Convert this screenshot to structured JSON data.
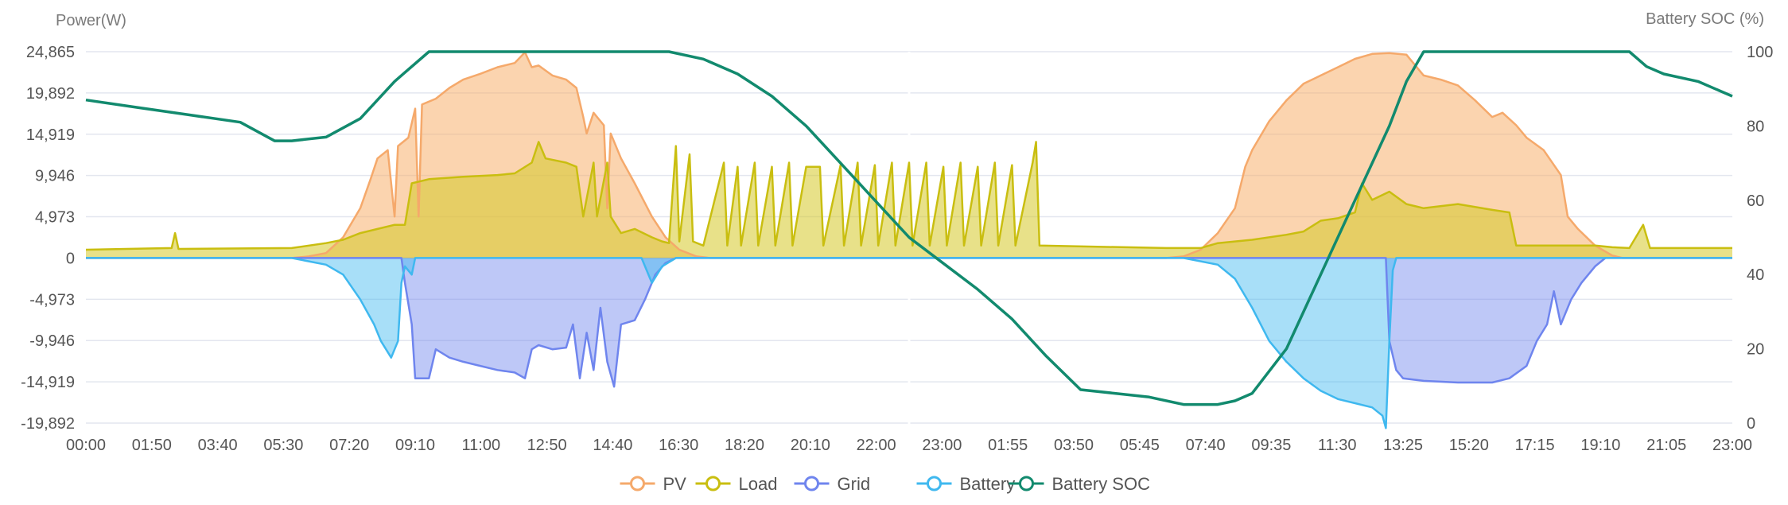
{
  "chart_data": {
    "type": "area",
    "ylabel_left": "Power(W)",
    "ylabel_right": "Battery SOC (%)",
    "ylim_left": [
      -19892,
      24865
    ],
    "ylim_right": [
      0,
      100
    ],
    "y_ticks_left": [
      "24,865",
      "19,892",
      "14,919",
      "9,946",
      "4,973",
      "0",
      "-4,973",
      "-9,946",
      "-14,919",
      "-19,892"
    ],
    "y_ticks_right": [
      "100",
      "80",
      "60",
      "40",
      "20",
      "0"
    ],
    "x_ticks": [
      "00:00",
      "01:50",
      "03:40",
      "05:30",
      "07:20",
      "09:10",
      "11:00",
      "12:50",
      "14:40",
      "16:30",
      "18:20",
      "20:10",
      "22:00",
      "23:00",
      "01:55",
      "03:50",
      "05:45",
      "07:40",
      "09:35",
      "11:30",
      "13:25",
      "15:20",
      "17:15",
      "19:10",
      "21:05",
      "23:00"
    ],
    "grid": true,
    "legend_position": "bottom-center",
    "x_range_hours": [
      0,
      48
    ],
    "series": [
      {
        "name": "PV",
        "color": "#f5a96b",
        "fill": "rgba(248,176,110,0.55)",
        "points": [
          [
            0,
            0
          ],
          [
            6.0,
            0
          ],
          [
            6.5,
            200
          ],
          [
            7.0,
            600
          ],
          [
            7.5,
            2500
          ],
          [
            8.0,
            6000
          ],
          [
            8.3,
            9500
          ],
          [
            8.5,
            12000
          ],
          [
            8.8,
            13000
          ],
          [
            9.0,
            5000
          ],
          [
            9.1,
            13500
          ],
          [
            9.4,
            14500
          ],
          [
            9.6,
            18000
          ],
          [
            9.7,
            5000
          ],
          [
            9.8,
            18500
          ],
          [
            10.2,
            19200
          ],
          [
            10.6,
            20500
          ],
          [
            11.0,
            21500
          ],
          [
            11.5,
            22200
          ],
          [
            12.0,
            23000
          ],
          [
            12.5,
            23500
          ],
          [
            12.8,
            24800
          ],
          [
            13.0,
            23000
          ],
          [
            13.2,
            23200
          ],
          [
            13.6,
            22000
          ],
          [
            14.0,
            21500
          ],
          [
            14.3,
            20500
          ],
          [
            14.5,
            17000
          ],
          [
            14.6,
            15000
          ],
          [
            14.8,
            17500
          ],
          [
            15.1,
            16000
          ],
          [
            15.2,
            6000
          ],
          [
            15.3,
            15000
          ],
          [
            15.6,
            12000
          ],
          [
            16.0,
            9000
          ],
          [
            16.5,
            5000
          ],
          [
            16.9,
            2500
          ],
          [
            17.3,
            1000
          ],
          [
            17.8,
            200
          ],
          [
            18.2,
            0
          ],
          [
            31.5,
            0
          ],
          [
            32.0,
            200
          ],
          [
            32.5,
            1000
          ],
          [
            33.0,
            3000
          ],
          [
            33.5,
            6000
          ],
          [
            33.8,
            11000
          ],
          [
            34.0,
            13000
          ],
          [
            34.5,
            16500
          ],
          [
            35.0,
            19000
          ],
          [
            35.5,
            21000
          ],
          [
            36.0,
            22000
          ],
          [
            36.5,
            23000
          ],
          [
            37.0,
            24000
          ],
          [
            37.5,
            24600
          ],
          [
            38.0,
            24700
          ],
          [
            38.5,
            24500
          ],
          [
            39.0,
            22000
          ],
          [
            39.5,
            21500
          ],
          [
            40.0,
            20800
          ],
          [
            40.5,
            19000
          ],
          [
            41.0,
            17000
          ],
          [
            41.3,
            17500
          ],
          [
            41.7,
            16000
          ],
          [
            42.0,
            14500
          ],
          [
            42.5,
            13000
          ],
          [
            43.0,
            10000
          ],
          [
            43.2,
            5000
          ],
          [
            43.5,
            3500
          ],
          [
            44.0,
            1500
          ],
          [
            44.5,
            300
          ],
          [
            44.8,
            0
          ],
          [
            48,
            0
          ]
        ]
      },
      {
        "name": "Load",
        "color": "#c9be10",
        "fill": "rgba(214,201,40,0.55)",
        "points": [
          [
            0,
            1000
          ],
          [
            2.5,
            1200
          ],
          [
            2.6,
            3000
          ],
          [
            2.7,
            1100
          ],
          [
            6.0,
            1200
          ],
          [
            7.0,
            1800
          ],
          [
            7.5,
            2200
          ],
          [
            8.0,
            3000
          ],
          [
            8.5,
            3500
          ],
          [
            9.0,
            4000
          ],
          [
            9.3,
            4000
          ],
          [
            9.5,
            9000
          ],
          [
            10.0,
            9500
          ],
          [
            11.0,
            9800
          ],
          [
            12.0,
            10000
          ],
          [
            12.5,
            10200
          ],
          [
            13.0,
            11500
          ],
          [
            13.2,
            14000
          ],
          [
            13.4,
            12000
          ],
          [
            14.0,
            11500
          ],
          [
            14.3,
            11000
          ],
          [
            14.5,
            5000
          ],
          [
            14.8,
            11500
          ],
          [
            14.9,
            5000
          ],
          [
            15.2,
            11500
          ],
          [
            15.3,
            5000
          ],
          [
            15.6,
            3000
          ],
          [
            16.0,
            3500
          ],
          [
            16.5,
            2500
          ],
          [
            16.8,
            2000
          ],
          [
            17.0,
            1800
          ],
          [
            17.2,
            13500
          ],
          [
            17.3,
            2000
          ],
          [
            17.6,
            12500
          ],
          [
            17.7,
            2000
          ],
          [
            18.0,
            1500
          ],
          [
            18.6,
            11500
          ],
          [
            18.7,
            1500
          ],
          [
            19.0,
            11000
          ],
          [
            19.1,
            1500
          ],
          [
            19.5,
            11500
          ],
          [
            19.6,
            1500
          ],
          [
            20.0,
            11000
          ],
          [
            20.1,
            1500
          ],
          [
            20.5,
            11500
          ],
          [
            20.6,
            1500
          ],
          [
            21.0,
            11000
          ],
          [
            21.4,
            11000
          ],
          [
            21.5,
            1500
          ],
          [
            22.0,
            11200
          ],
          [
            22.1,
            1500
          ],
          [
            22.5,
            11500
          ],
          [
            22.6,
            1500
          ],
          [
            23.0,
            11200
          ],
          [
            23.1,
            1500
          ],
          [
            23.5,
            11500
          ],
          [
            23.6,
            1500
          ],
          [
            24.0,
            11500
          ],
          [
            24.1,
            1500
          ],
          [
            24.5,
            11500
          ],
          [
            24.6,
            1500
          ],
          [
            25.0,
            11000
          ],
          [
            25.1,
            1500
          ],
          [
            25.5,
            11500
          ],
          [
            25.6,
            1500
          ],
          [
            26.0,
            11000
          ],
          [
            26.1,
            1500
          ],
          [
            26.5,
            11500
          ],
          [
            26.6,
            1500
          ],
          [
            27.0,
            11200
          ],
          [
            27.1,
            1500
          ],
          [
            27.6,
            11500
          ],
          [
            27.7,
            14000
          ],
          [
            27.8,
            1500
          ],
          [
            31.5,
            1200
          ],
          [
            32.5,
            1200
          ],
          [
            33.0,
            1800
          ],
          [
            34.0,
            2200
          ],
          [
            35.0,
            2800
          ],
          [
            35.5,
            3200
          ],
          [
            36.0,
            4500
          ],
          [
            36.5,
            4800
          ],
          [
            37.0,
            5500
          ],
          [
            37.2,
            9000
          ],
          [
            37.5,
            7000
          ],
          [
            38.0,
            8000
          ],
          [
            38.5,
            6500
          ],
          [
            39.0,
            6000
          ],
          [
            40.0,
            6500
          ],
          [
            41.0,
            5800
          ],
          [
            41.5,
            5500
          ],
          [
            41.7,
            1500
          ],
          [
            43.0,
            1500
          ],
          [
            44.0,
            1500
          ],
          [
            44.5,
            1300
          ],
          [
            45.0,
            1200
          ],
          [
            45.4,
            4000
          ],
          [
            45.6,
            1200
          ],
          [
            48,
            1200
          ]
        ]
      },
      {
        "name": "Grid",
        "color": "#6f85ee",
        "fill": "rgba(111,133,238,0.45)",
        "points": [
          [
            0,
            0
          ],
          [
            9.2,
            0
          ],
          [
            9.3,
            -3000
          ],
          [
            9.5,
            -8000
          ],
          [
            9.6,
            -14500
          ],
          [
            10.0,
            -14500
          ],
          [
            10.2,
            -11000
          ],
          [
            10.6,
            -12000
          ],
          [
            11.0,
            -12500
          ],
          [
            11.5,
            -13000
          ],
          [
            12.0,
            -13500
          ],
          [
            12.5,
            -13800
          ],
          [
            12.8,
            -14500
          ],
          [
            13.0,
            -11000
          ],
          [
            13.2,
            -10500
          ],
          [
            13.6,
            -11000
          ],
          [
            14.0,
            -10800
          ],
          [
            14.2,
            -8000
          ],
          [
            14.4,
            -14500
          ],
          [
            14.6,
            -9000
          ],
          [
            14.8,
            -13500
          ],
          [
            15.0,
            -6000
          ],
          [
            15.2,
            -12500
          ],
          [
            15.4,
            -15500
          ],
          [
            15.6,
            -8000
          ],
          [
            16.0,
            -7500
          ],
          [
            16.3,
            -5000
          ],
          [
            16.6,
            -2000
          ],
          [
            16.9,
            -600
          ],
          [
            17.2,
            0
          ],
          [
            37.9,
            0
          ],
          [
            38.0,
            -10000
          ],
          [
            38.2,
            -13500
          ],
          [
            38.4,
            -14500
          ],
          [
            39.0,
            -14800
          ],
          [
            40.0,
            -15000
          ],
          [
            41.0,
            -15000
          ],
          [
            41.5,
            -14500
          ],
          [
            42.0,
            -13000
          ],
          [
            42.3,
            -10000
          ],
          [
            42.6,
            -8000
          ],
          [
            42.8,
            -4000
          ],
          [
            43.0,
            -8000
          ],
          [
            43.3,
            -5000
          ],
          [
            43.6,
            -3000
          ],
          [
            44.0,
            -1000
          ],
          [
            44.3,
            0
          ],
          [
            48,
            0
          ]
        ]
      },
      {
        "name": "Battery",
        "color": "#3fb8ef",
        "fill": "rgba(63,184,239,0.45)",
        "points": [
          [
            0,
            0
          ],
          [
            6.0,
            0
          ],
          [
            6.5,
            -400
          ],
          [
            7.0,
            -800
          ],
          [
            7.5,
            -2000
          ],
          [
            8.0,
            -5000
          ],
          [
            8.4,
            -8000
          ],
          [
            8.6,
            -10000
          ],
          [
            8.9,
            -12000
          ],
          [
            9.1,
            -10000
          ],
          [
            9.2,
            -3000
          ],
          [
            9.3,
            -1000
          ],
          [
            9.5,
            -2000
          ],
          [
            9.6,
            0
          ],
          [
            16.2,
            0
          ],
          [
            16.5,
            -3000
          ],
          [
            16.8,
            -1000
          ],
          [
            17.2,
            0
          ],
          [
            32.0,
            0
          ],
          [
            33.0,
            -800
          ],
          [
            33.5,
            -2500
          ],
          [
            34.0,
            -6000
          ],
          [
            34.5,
            -10000
          ],
          [
            35.0,
            -12500
          ],
          [
            35.5,
            -14500
          ],
          [
            36.0,
            -16000
          ],
          [
            36.5,
            -17000
          ],
          [
            37.0,
            -17500
          ],
          [
            37.5,
            -18000
          ],
          [
            37.8,
            -19000
          ],
          [
            37.9,
            -20500
          ],
          [
            38.0,
            -10000
          ],
          [
            38.1,
            -1500
          ],
          [
            38.2,
            0
          ],
          [
            48,
            0
          ]
        ]
      },
      {
        "name": "Battery SOC",
        "color": "#128a6e",
        "points": [
          [
            0,
            87
          ],
          [
            1.5,
            85
          ],
          [
            3.0,
            83
          ],
          [
            4.5,
            81
          ],
          [
            5.5,
            76
          ],
          [
            6.0,
            76
          ],
          [
            7.0,
            77
          ],
          [
            8.0,
            82
          ],
          [
            9.0,
            92
          ],
          [
            10.0,
            100
          ],
          [
            11.0,
            100
          ],
          [
            16.0,
            100
          ],
          [
            17.0,
            100
          ],
          [
            18.0,
            98
          ],
          [
            19.0,
            94
          ],
          [
            20.0,
            88
          ],
          [
            21.0,
            80
          ],
          [
            22.0,
            70
          ],
          [
            23.0,
            60
          ],
          [
            24.0,
            50
          ],
          [
            25.0,
            43
          ],
          [
            26.0,
            36
          ],
          [
            27.0,
            28
          ],
          [
            28.0,
            18
          ],
          [
            29.0,
            9
          ],
          [
            30.0,
            8
          ],
          [
            31.0,
            7
          ],
          [
            32.0,
            5
          ],
          [
            33.0,
            5
          ],
          [
            33.5,
            6
          ],
          [
            34.0,
            8
          ],
          [
            35.0,
            20
          ],
          [
            36.0,
            40
          ],
          [
            37.0,
            60
          ],
          [
            38.0,
            80
          ],
          [
            38.5,
            92
          ],
          [
            39.0,
            100
          ],
          [
            40.0,
            100
          ],
          [
            44.0,
            100
          ],
          [
            45.0,
            100
          ],
          [
            45.5,
            96
          ],
          [
            46.0,
            94
          ],
          [
            47.0,
            92
          ],
          [
            47.5,
            90
          ],
          [
            48.0,
            88
          ]
        ]
      }
    ]
  }
}
